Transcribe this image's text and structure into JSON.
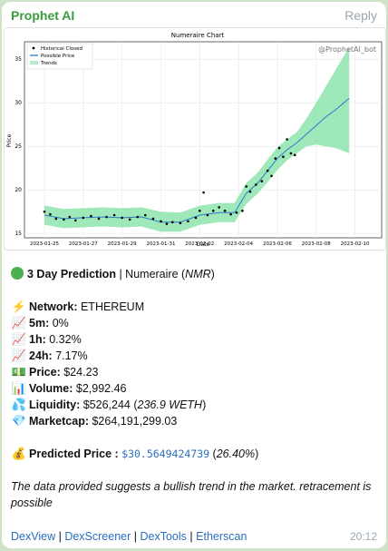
{
  "message": {
    "sender": "Prophet AI",
    "reply_label": "Reply",
    "time": "20:12"
  },
  "colors": {
    "sender": "#3a9a3e",
    "link": "#2a6fbf",
    "trend_fill": "#7ee0a3",
    "possible_line": "#2b7bc9",
    "points": "#000000"
  },
  "chart_data": {
    "type": "line",
    "title": "Numeraire Chart",
    "watermark": "@ProphetAI_bot",
    "xlabel": "Date",
    "ylabel": "Price",
    "x_ticks": [
      "2023-01-25",
      "2023-01-27",
      "2023-01-29",
      "2023-01-31",
      "2023-02-02",
      "2023-02-04",
      "2023-02-06",
      "2023-02-08",
      "2023-02-10"
    ],
    "y_ticks": [
      15,
      20,
      25,
      30,
      35
    ],
    "xlim_days": [
      0,
      17
    ],
    "ylim": [
      14.5,
      37
    ],
    "legend": [
      "Historical Closed",
      "Possible Price",
      "Trends"
    ],
    "legend_position": "top-left",
    "grid": true,
    "possible_price": [
      [
        0,
        17.1
      ],
      [
        1,
        16.7
      ],
      [
        2,
        16.8
      ],
      [
        3,
        16.9
      ],
      [
        4,
        16.8
      ],
      [
        5,
        16.9
      ],
      [
        6,
        16.3
      ],
      [
        7,
        16.3
      ],
      [
        8,
        17.1
      ],
      [
        9,
        17.4
      ],
      [
        9.8,
        17.4
      ],
      [
        10.4,
        19.6
      ],
      [
        11,
        20.8
      ],
      [
        11.5,
        22.2
      ],
      [
        12,
        23.6
      ],
      [
        12.5,
        24.6
      ],
      [
        13,
        25.4
      ],
      [
        13.5,
        26.4
      ],
      [
        14,
        27.4
      ],
      [
        14.5,
        28.4
      ],
      [
        15,
        29.2
      ],
      [
        15.7,
        30.5
      ]
    ],
    "trend_upper": [
      [
        0,
        18.2
      ],
      [
        1,
        17.8
      ],
      [
        2,
        17.9
      ],
      [
        3,
        18.0
      ],
      [
        4,
        17.9
      ],
      [
        5,
        18.0
      ],
      [
        6,
        17.5
      ],
      [
        7,
        17.4
      ],
      [
        8,
        18.2
      ],
      [
        9,
        18.5
      ],
      [
        9.8,
        18.5
      ],
      [
        10.4,
        20.8
      ],
      [
        11,
        22.0
      ],
      [
        11.5,
        23.5
      ],
      [
        12,
        24.9
      ],
      [
        12.5,
        25.8
      ],
      [
        13,
        26.6
      ],
      [
        13.5,
        28.2
      ],
      [
        14,
        30.0
      ],
      [
        14.5,
        31.9
      ],
      [
        15,
        33.8
      ],
      [
        15.7,
        36.4
      ]
    ],
    "trend_lower": [
      [
        0,
        16.0
      ],
      [
        1,
        15.6
      ],
      [
        2,
        15.7
      ],
      [
        3,
        15.8
      ],
      [
        4,
        15.7
      ],
      [
        5,
        15.8
      ],
      [
        6,
        15.2
      ],
      [
        7,
        15.2
      ],
      [
        8,
        16.0
      ],
      [
        9,
        16.3
      ],
      [
        9.8,
        16.3
      ],
      [
        10.4,
        18.4
      ],
      [
        11,
        19.6
      ],
      [
        11.5,
        20.9
      ],
      [
        12,
        22.3
      ],
      [
        12.5,
        23.4
      ],
      [
        13,
        24.2
      ],
      [
        13.5,
        25.0
      ],
      [
        14,
        25.2
      ],
      [
        14.5,
        25.0
      ],
      [
        15,
        24.8
      ],
      [
        15.7,
        24.2
      ]
    ],
    "historical_closed": [
      [
        0,
        17.5
      ],
      [
        0.3,
        17.2
      ],
      [
        0.6,
        16.7
      ],
      [
        1,
        16.6
      ],
      [
        1.3,
        16.9
      ],
      [
        1.6,
        16.5
      ],
      [
        2,
        16.8
      ],
      [
        2.4,
        17.0
      ],
      [
        2.8,
        16.7
      ],
      [
        3.2,
        16.9
      ],
      [
        3.6,
        17.1
      ],
      [
        4,
        16.8
      ],
      [
        4.4,
        16.6
      ],
      [
        4.8,
        16.9
      ],
      [
        5.2,
        17.1
      ],
      [
        5.6,
        16.7
      ],
      [
        6,
        16.4
      ],
      [
        6.3,
        16.1
      ],
      [
        6.6,
        16.3
      ],
      [
        7,
        16.2
      ],
      [
        7.4,
        16.4
      ],
      [
        7.8,
        16.8
      ],
      [
        8,
        17.6
      ],
      [
        8.2,
        19.7
      ],
      [
        8.4,
        17.1
      ],
      [
        8.7,
        17.6
      ],
      [
        9,
        18.0
      ],
      [
        9.3,
        17.6
      ],
      [
        9.6,
        17.2
      ],
      [
        9.9,
        17.4
      ],
      [
        10.2,
        17.6
      ],
      [
        10.4,
        20.4
      ],
      [
        10.6,
        19.8
      ],
      [
        10.9,
        20.6
      ],
      [
        11.2,
        21.0
      ],
      [
        11.5,
        22.2
      ],
      [
        11.7,
        21.6
      ],
      [
        11.9,
        23.6
      ],
      [
        12.1,
        24.8
      ],
      [
        12.3,
        23.8
      ],
      [
        12.5,
        25.8
      ],
      [
        12.7,
        24.2
      ],
      [
        12.9,
        24.0
      ]
    ]
  },
  "prediction": {
    "heading": "3 Day Prediction",
    "divider": "|",
    "token_name": "Numeraire",
    "token_symbol": "NMR"
  },
  "stats": {
    "network_label": "Network:",
    "network_value": "ETHEREUM",
    "m5_label": "5m:",
    "m5_value": "0%",
    "h1_label": "1h:",
    "h1_value": "0.32%",
    "h24_label": "24h:",
    "h24_value": "7.17%",
    "price_label": "Price:",
    "price_value": "$24.23",
    "volume_label": "Volume:",
    "volume_value": "$2,992.46",
    "liquidity_label": "Liquidity:",
    "liquidity_value": "$526,244",
    "liquidity_weth": "236.9 WETH",
    "marketcap_label": "Marketcap:",
    "marketcap_value": "$264,191,299.03"
  },
  "predicted": {
    "label": "Predicted Price :",
    "value": "$30.5649424739",
    "percent": "26.40%"
  },
  "note": "The data provided suggests a bullish trend in the market. retracement is possible",
  "links": [
    "DexView",
    "DexScreener",
    "DexTools",
    "Etherscan"
  ]
}
